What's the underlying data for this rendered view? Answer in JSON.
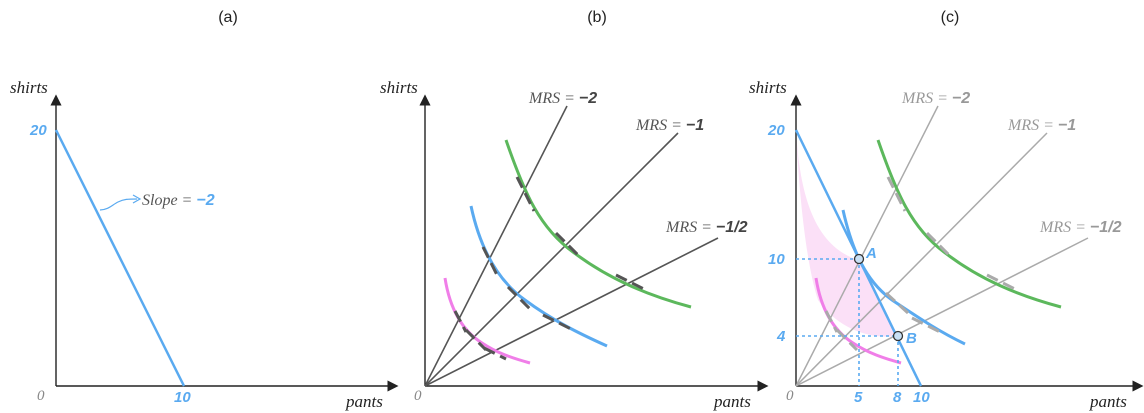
{
  "panels": [
    {
      "id": "a",
      "title": "(a)"
    },
    {
      "id": "b",
      "title": "(b)"
    },
    {
      "id": "c",
      "title": "(c)"
    }
  ],
  "axes": {
    "y_label": "shirts",
    "x_label": "pants",
    "origin": "0"
  },
  "panel_a": {
    "y_intercept": "20",
    "x_intercept": "10",
    "slope_label": "Slope = ",
    "slope_value": "−2"
  },
  "panel_b": {
    "mrs_labels": [
      {
        "prefix": "MRS = ",
        "value": "−2"
      },
      {
        "prefix": "MRS = ",
        "value": "−1"
      },
      {
        "prefix": "MRS = ",
        "value": "−1/2"
      }
    ]
  },
  "panel_c": {
    "y_intercept": "20",
    "x_intercept": "10",
    "y_ticks": [
      "10",
      "4"
    ],
    "x_ticks": [
      "5",
      "8"
    ],
    "points": [
      {
        "label": "A",
        "pants": 5,
        "shirts": 10
      },
      {
        "label": "B",
        "pants": 8,
        "shirts": 4
      }
    ],
    "mrs_labels": [
      {
        "prefix": "MRS = ",
        "value": "−2"
      },
      {
        "prefix": "MRS = ",
        "value": "−1"
      },
      {
        "prefix": "MRS = ",
        "value": "−1/2"
      }
    ]
  },
  "colors": {
    "budget": "#5aaaf0",
    "indiff_green": "#5cb85c",
    "indiff_blue": "#5aaaf0",
    "indiff_pink": "#f07ee8",
    "ray": "#555555",
    "ray_faded": "#aaaaaa",
    "feasible_fill": "#fbe0f7"
  },
  "icons": {
    "axis_arrow": "arrowhead-icon",
    "point_marker": "circle-marker-icon"
  }
}
